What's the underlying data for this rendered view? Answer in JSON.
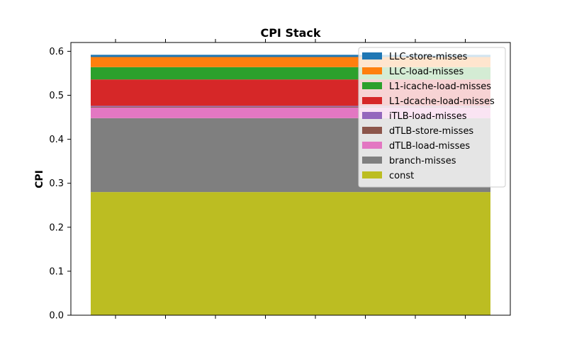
{
  "chart_data": {
    "type": "bar",
    "stacked": true,
    "title": "CPI Stack",
    "xlabel": "",
    "ylabel": "CPI",
    "ylim": [
      0,
      0.62
    ],
    "yticks": [
      0.0,
      0.1,
      0.2,
      0.3,
      0.4,
      0.5,
      0.6
    ],
    "ytick_labels": [
      "0.0",
      "0.1",
      "0.2",
      "0.3",
      "0.4",
      "0.5",
      "0.6"
    ],
    "xtick_count": 8,
    "grid": false,
    "legend_position": "top-right",
    "stack_order_bottom_to_top": [
      "const",
      "branch-misses",
      "dTLB-load-misses",
      "dTLB-store-misses",
      "iTLB-load-misses",
      "L1-dcache-load-misses",
      "L1-icache-load-misses",
      "LLC-load-misses",
      "LLC-store-misses"
    ],
    "series": [
      {
        "name": "LLC-store-misses",
        "value": 0.005,
        "color": "#1f77b4"
      },
      {
        "name": "LLC-load-misses",
        "value": 0.023,
        "color": "#ff7f0e"
      },
      {
        "name": "L1-icache-load-misses",
        "value": 0.028,
        "color": "#2ca02c"
      },
      {
        "name": "L1-dcache-load-misses",
        "value": 0.06,
        "color": "#d62728"
      },
      {
        "name": "iTLB-load-misses",
        "value": 0.002,
        "color": "#9467bd"
      },
      {
        "name": "dTLB-store-misses",
        "value": 0.002,
        "color": "#8c564b"
      },
      {
        "name": "dTLB-load-misses",
        "value": 0.024,
        "color": "#e377c2"
      },
      {
        "name": "branch-misses",
        "value": 0.168,
        "color": "#7f7f7f"
      },
      {
        "name": "const",
        "value": 0.28,
        "color": "#bcbd22"
      }
    ]
  }
}
